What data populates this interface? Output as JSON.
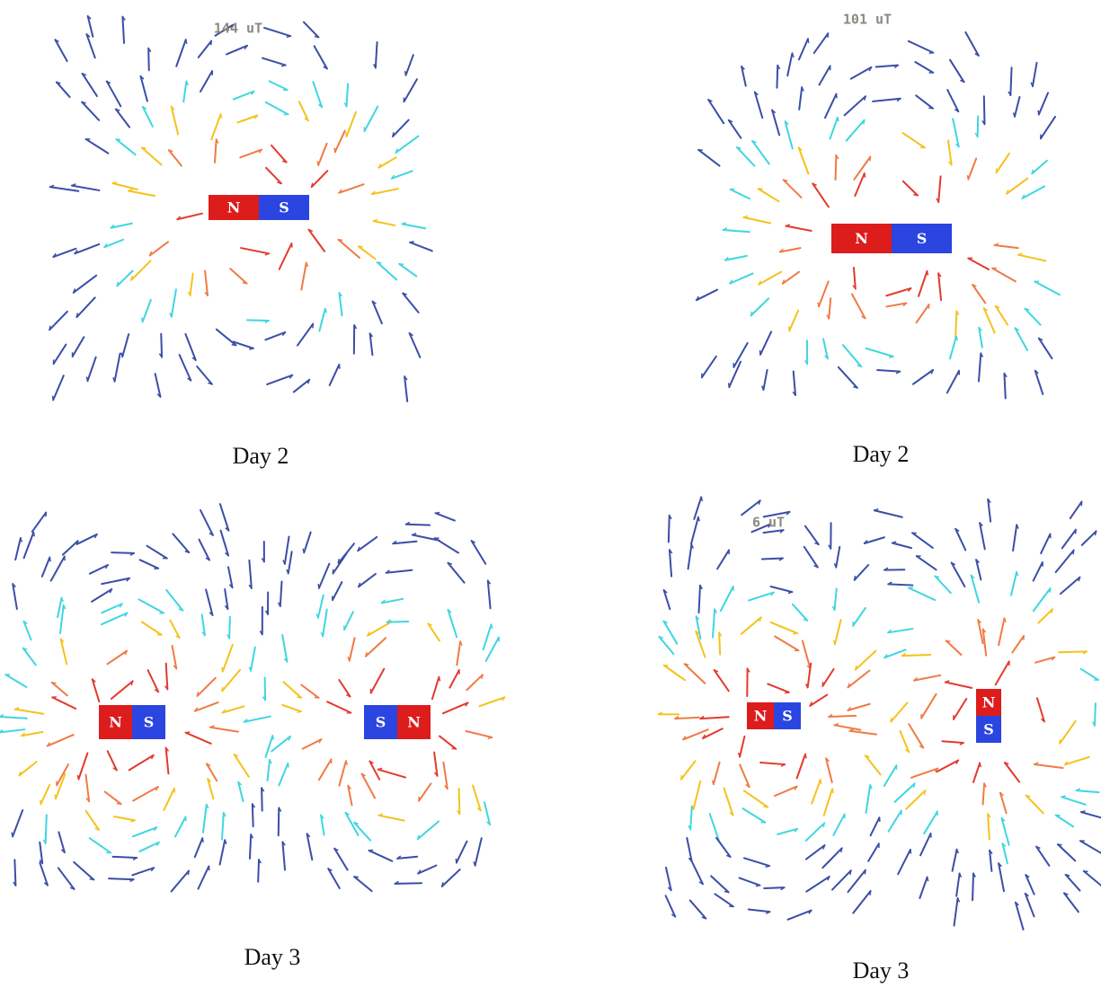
{
  "panels": [
    {
      "reading": "144 uT",
      "caption": "Day 2",
      "magnets": [
        {
          "poles": [
            "N",
            "S"
          ]
        }
      ]
    },
    {
      "reading": "101 uT",
      "caption": "Day 2",
      "magnets": [
        {
          "poles": [
            "N",
            "S"
          ]
        }
      ]
    },
    {
      "caption": "Day 3",
      "magnets": [
        {
          "poles": [
            "N",
            "S"
          ]
        },
        {
          "poles": [
            "S",
            "N"
          ]
        }
      ]
    },
    {
      "reading": "6 uT",
      "caption": "Day 3",
      "magnets": [
        {
          "poles": [
            "N",
            "S"
          ]
        },
        {
          "poles": [
            "N",
            "S"
          ]
        }
      ]
    }
  ]
}
